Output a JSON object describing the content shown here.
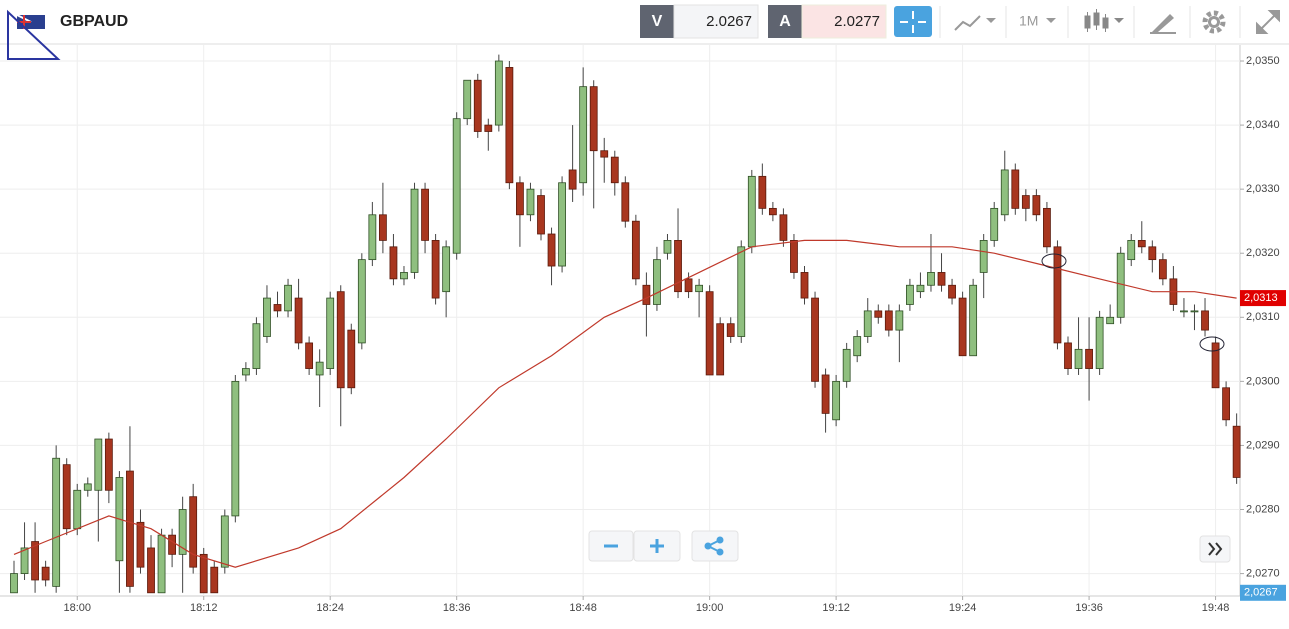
{
  "header": {
    "symbol": "GBPAUD",
    "bid_label": "V",
    "bid": "2.0267",
    "ask_label": "A",
    "ask": "2.0277",
    "timeframe": "1M"
  },
  "chart_data": {
    "type": "candlestick",
    "x": [
      "17:54",
      "17:55",
      "17:56",
      "17:57",
      "17:58",
      "17:59",
      "18:00",
      "18:01",
      "18:02",
      "18:03",
      "18:04",
      "18:05",
      "18:06",
      "18:07",
      "18:08",
      "18:09",
      "18:10",
      "18:11",
      "18:12",
      "18:13",
      "18:14",
      "18:15",
      "18:16",
      "18:17",
      "18:18",
      "18:19",
      "18:20",
      "18:21",
      "18:22",
      "18:23",
      "18:24",
      "18:25",
      "18:26",
      "18:27",
      "18:28",
      "18:29",
      "18:30",
      "18:31",
      "18:32",
      "18:33",
      "18:34",
      "18:35",
      "18:36",
      "18:37",
      "18:38",
      "18:39",
      "18:40",
      "18:41",
      "18:42",
      "18:43",
      "18:44",
      "18:45",
      "18:46",
      "18:47",
      "18:48",
      "18:49",
      "18:50",
      "18:51",
      "18:52",
      "18:53",
      "18:54",
      "18:55",
      "18:56",
      "18:57",
      "18:58",
      "18:59",
      "19:00",
      "19:01",
      "19:02",
      "19:03",
      "19:04",
      "19:05",
      "19:06",
      "19:07",
      "19:08",
      "19:09",
      "19:10",
      "19:11",
      "19:12",
      "19:13",
      "19:14",
      "19:15",
      "19:16",
      "19:17",
      "19:18",
      "19:19",
      "19:20",
      "19:21",
      "19:22",
      "19:23",
      "19:24",
      "19:25",
      "19:26",
      "19:27",
      "19:28",
      "19:29",
      "19:30",
      "19:31",
      "19:32",
      "19:33",
      "19:34",
      "19:35",
      "19:36",
      "19:37",
      "19:38",
      "19:39",
      "19:40",
      "19:41",
      "19:42",
      "19:43",
      "19:44",
      "19:45",
      "19:46",
      "19:47",
      "19:48",
      "19:49",
      "19:50"
    ],
    "open": [
      2.0267,
      2.027,
      2.0275,
      2.0271,
      2.0268,
      2.0287,
      2.0277,
      2.0283,
      2.0283,
      2.0291,
      2.0272,
      2.0286,
      2.0278,
      2.0274,
      2.0267,
      2.0276,
      2.0273,
      2.0282,
      2.0273,
      2.0271,
      2.0271,
      2.0279,
      2.0301,
      2.0302,
      2.0307,
      2.0312,
      2.0311,
      2.0313,
      2.0306,
      2.0301,
      2.0302,
      2.0314,
      2.0308,
      2.0306,
      2.0319,
      2.0326,
      2.0321,
      2.0316,
      2.0317,
      2.033,
      2.0322,
      2.0314,
      2.032,
      2.0341,
      2.0347,
      2.034,
      2.034,
      2.0349,
      2.0331,
      2.0326,
      2.0329,
      2.0323,
      2.0318,
      2.0333,
      2.0331,
      2.0346,
      2.0336,
      2.0335,
      2.0331,
      2.0325,
      2.0315,
      2.0312,
      2.032,
      2.0322,
      2.0316,
      2.0314,
      2.0314,
      2.0309,
      2.0309,
      2.0307,
      2.0321,
      2.0332,
      2.0327,
      2.0326,
      2.0322,
      2.0317,
      2.0313,
      2.0301,
      2.0294,
      2.03,
      2.0304,
      2.0307,
      2.0311,
      2.0311,
      2.0308,
      2.0312,
      2.0314,
      2.0315,
      2.0317,
      2.0315,
      2.0313,
      2.0304,
      2.0317,
      2.0322,
      2.0326,
      2.0333,
      2.0329,
      2.0329,
      2.0327,
      2.0321,
      2.0306,
      2.0302,
      2.0305,
      2.0302,
      2.0309,
      2.031,
      2.0319,
      2.0322,
      2.0321,
      2.0319,
      2.0316,
      2.0311,
      2.0311,
      2.0311,
      2.0306,
      2.0299,
      2.0293
    ],
    "high": [
      2.0272,
      2.0278,
      2.0278,
      2.0272,
      2.029,
      2.0288,
      2.0284,
      2.0285,
      2.0291,
      2.0292,
      2.0286,
      2.0293,
      2.028,
      2.0276,
      2.0277,
      2.0277,
      2.0282,
      2.0284,
      2.0274,
      2.0272,
      2.028,
      2.0301,
      2.0303,
      2.031,
      2.0315,
      2.0314,
      2.0316,
      2.0316,
      2.0307,
      2.0305,
      2.0314,
      2.0315,
      2.0309,
      2.032,
      2.0328,
      2.0331,
      2.0323,
      2.0318,
      2.0331,
      2.0331,
      2.0323,
      2.0322,
      2.0342,
      2.0347,
      2.0348,
      2.0341,
      2.0351,
      2.035,
      2.0332,
      2.0331,
      2.033,
      2.0324,
      2.0332,
      2.034,
      2.0349,
      2.0347,
      2.0338,
      2.0336,
      2.0332,
      2.0326,
      2.0317,
      2.0321,
      2.0323,
      2.0327,
      2.0317,
      2.0316,
      2.0315,
      2.031,
      2.031,
      2.0322,
      2.0333,
      2.0334,
      2.0328,
      2.0327,
      2.0323,
      2.0318,
      2.0314,
      2.0302,
      2.0301,
      2.0306,
      2.0308,
      2.0313,
      2.0312,
      2.0312,
      2.0312,
      2.0316,
      2.0317,
      2.0323,
      2.032,
      2.0316,
      2.0314,
      2.0316,
      2.0323,
      2.0328,
      2.0336,
      2.0334,
      2.033,
      2.033,
      2.0328,
      2.0322,
      2.0307,
      2.031,
      2.031,
      2.0311,
      2.0312,
      2.0321,
      2.0323,
      2.0325,
      2.0322,
      2.032,
      2.0318,
      2.0313,
      2.0312,
      2.0313,
      2.0307,
      2.03,
      2.0295
    ],
    "low": [
      2.0267,
      2.0269,
      2.0267,
      2.0268,
      2.0267,
      2.0276,
      2.0276,
      2.0282,
      2.0275,
      2.0281,
      2.0267,
      2.0267,
      2.027,
      2.0267,
      2.0267,
      2.0271,
      2.0267,
      2.027,
      2.0267,
      2.0267,
      2.027,
      2.0278,
      2.03,
      2.0301,
      2.0306,
      2.031,
      2.031,
      2.0305,
      2.0301,
      2.0296,
      2.0301,
      2.0293,
      2.0298,
      2.0305,
      2.0318,
      2.032,
      2.0315,
      2.0315,
      2.0316,
      2.032,
      2.0312,
      2.031,
      2.0319,
      2.034,
      2.0338,
      2.0336,
      2.0339,
      2.033,
      2.0321,
      2.0325,
      2.0322,
      2.0315,
      2.0317,
      2.0328,
      2.0329,
      2.0327,
      2.0331,
      2.0329,
      2.0324,
      2.0315,
      2.0307,
      2.0311,
      2.0319,
      2.0313,
      2.0313,
      2.031,
      2.0301,
      2.0301,
      2.0306,
      2.0306,
      2.032,
      2.0326,
      2.0325,
      2.0321,
      2.0316,
      2.0312,
      2.0299,
      2.0292,
      2.0293,
      2.0299,
      2.0303,
      2.0306,
      2.0309,
      2.0307,
      2.0303,
      2.0311,
      2.0313,
      2.0314,
      2.0314,
      2.0312,
      2.0304,
      2.0304,
      2.0313,
      2.0321,
      2.0325,
      2.0326,
      2.0325,
      2.0325,
      2.032,
      2.0305,
      2.0301,
      2.0301,
      2.0297,
      2.0301,
      2.0309,
      2.0309,
      2.0318,
      2.032,
      2.0317,
      2.0315,
      2.0311,
      2.031,
      2.0308,
      2.0307,
      2.0299,
      2.0293,
      2.0284
    ],
    "close": [
      2.027,
      2.0274,
      2.0269,
      2.0269,
      2.0288,
      2.0277,
      2.0283,
      2.0284,
      2.0291,
      2.0283,
      2.0285,
      2.0268,
      2.0271,
      2.0267,
      2.0276,
      2.0273,
      2.028,
      2.0271,
      2.0267,
      2.0267,
      2.0279,
      2.03,
      2.0302,
      2.0309,
      2.0313,
      2.0311,
      2.0315,
      2.0306,
      2.0302,
      2.0303,
      2.0313,
      2.0299,
      2.0299,
      2.0319,
      2.0326,
      2.0322,
      2.0316,
      2.0317,
      2.033,
      2.0322,
      2.0313,
      2.0321,
      2.0341,
      2.0347,
      2.0339,
      2.0339,
      2.035,
      2.0331,
      2.0326,
      2.033,
      2.0323,
      2.0318,
      2.0331,
      2.033,
      2.0346,
      2.0336,
      2.0335,
      2.0331,
      2.0325,
      2.0316,
      2.0312,
      2.0319,
      2.0322,
      2.0314,
      2.0314,
      2.0315,
      2.0301,
      2.0301,
      2.0307,
      2.0321,
      2.0332,
      2.0327,
      2.0326,
      2.0322,
      2.0317,
      2.0313,
      2.03,
      2.0295,
      2.03,
      2.0305,
      2.0307,
      2.0311,
      2.031,
      2.0308,
      2.0311,
      2.0315,
      2.0315,
      2.0317,
      2.0315,
      2.0313,
      2.0304,
      2.0315,
      2.0322,
      2.0327,
      2.0333,
      2.0327,
      2.0327,
      2.0326,
      2.0321,
      2.0306,
      2.0302,
      2.0305,
      2.0302,
      2.031,
      2.031,
      2.032,
      2.0322,
      2.0321,
      2.0319,
      2.0316,
      2.0312,
      2.0311,
      2.0311,
      2.0308,
      2.0299,
      2.0294,
      2.0285
    ],
    "up_color": "#8fbf7f",
    "down_color": "#a8361f",
    "ma": {
      "color": "#c0392b",
      "x": [
        "17:54",
        "17:57",
        "18:03",
        "18:07",
        "18:11",
        "18:15",
        "18:21",
        "18:25",
        "18:31",
        "18:35",
        "18:40",
        "18:45",
        "18:50",
        "18:54",
        "18:59",
        "19:04",
        "19:09",
        "19:13",
        "19:18",
        "19:23",
        "19:27",
        "19:32",
        "19:37",
        "19:42",
        "19:46",
        "19:50"
      ],
      "values": [
        2.0273,
        2.0275,
        2.0279,
        2.0277,
        2.0273,
        2.0271,
        2.0274,
        2.0277,
        2.0285,
        2.0291,
        2.0299,
        2.0304,
        2.031,
        2.0313,
        2.0317,
        2.0321,
        2.0322,
        2.0322,
        2.0321,
        2.0321,
        2.032,
        2.0318,
        2.0316,
        2.0314,
        2.0314,
        2.0313
      ]
    },
    "ylim": [
      2.02665,
      2.03525
    ],
    "yticks": [
      {
        "value": 2.035,
        "label": "2,0350"
      },
      {
        "value": 2.034,
        "label": "2,0340"
      },
      {
        "value": 2.033,
        "label": "2,0330"
      },
      {
        "value": 2.032,
        "label": "2,0320"
      },
      {
        "value": 2.031,
        "label": "2,0310"
      },
      {
        "value": 2.03,
        "label": "2,0300"
      },
      {
        "value": 2.029,
        "label": "2,0290"
      },
      {
        "value": 2.028,
        "label": "2,0280"
      },
      {
        "value": 2.027,
        "label": "2,0270"
      }
    ],
    "xticks": [
      "18:00",
      "18:12",
      "18:24",
      "18:36",
      "18:48",
      "19:00",
      "19:12",
      "19:24",
      "19:36",
      "19:48"
    ],
    "price_badges": [
      {
        "value": 2.0313,
        "label": "2,0313",
        "color": "#e00000"
      },
      {
        "value": 2.0267,
        "label": "2,0267",
        "color": "#4aa3df"
      }
    ],
    "grid": true
  }
}
